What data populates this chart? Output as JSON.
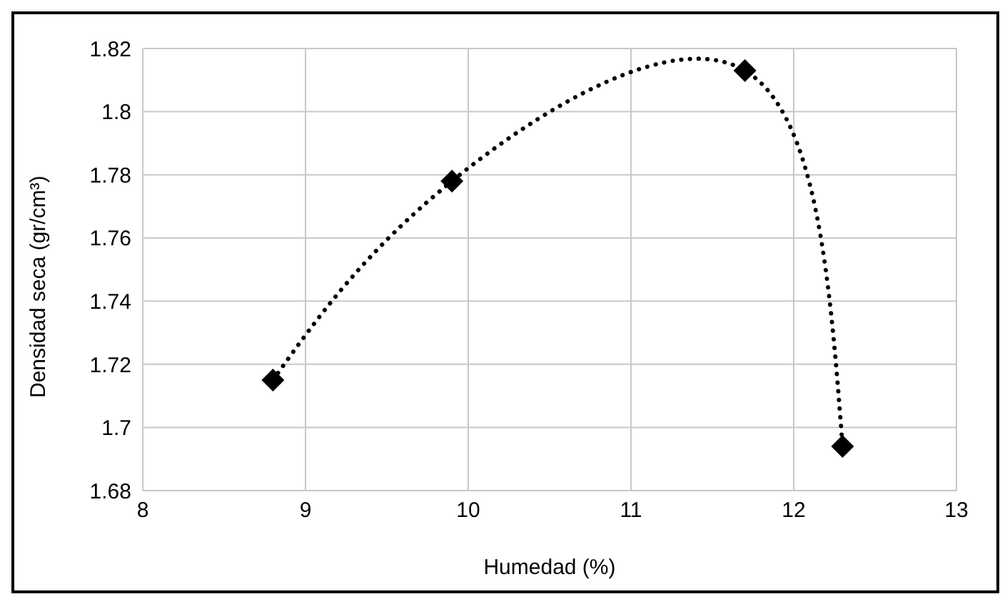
{
  "chart_data": {
    "type": "line",
    "xlabel": "Humedad (%)",
    "ylabel": "Densidad seca (gr/cm³)",
    "x": [
      8.8,
      9.9,
      11.7,
      12.3
    ],
    "series": [
      {
        "color": "#000000",
        "values": [
          1.715,
          1.778,
          1.813,
          1.694
        ]
      }
    ],
    "xlim": [
      8,
      13
    ],
    "xticks": [
      8,
      9,
      10,
      11,
      12,
      13
    ],
    "ylim": [
      1.68,
      1.82
    ],
    "yticks": [
      1.68,
      1.7,
      1.72,
      1.74,
      1.76,
      1.78,
      1.8,
      1.82
    ],
    "grid": true,
    "legend": false,
    "marker": "diamond",
    "line_style": "dotted"
  }
}
